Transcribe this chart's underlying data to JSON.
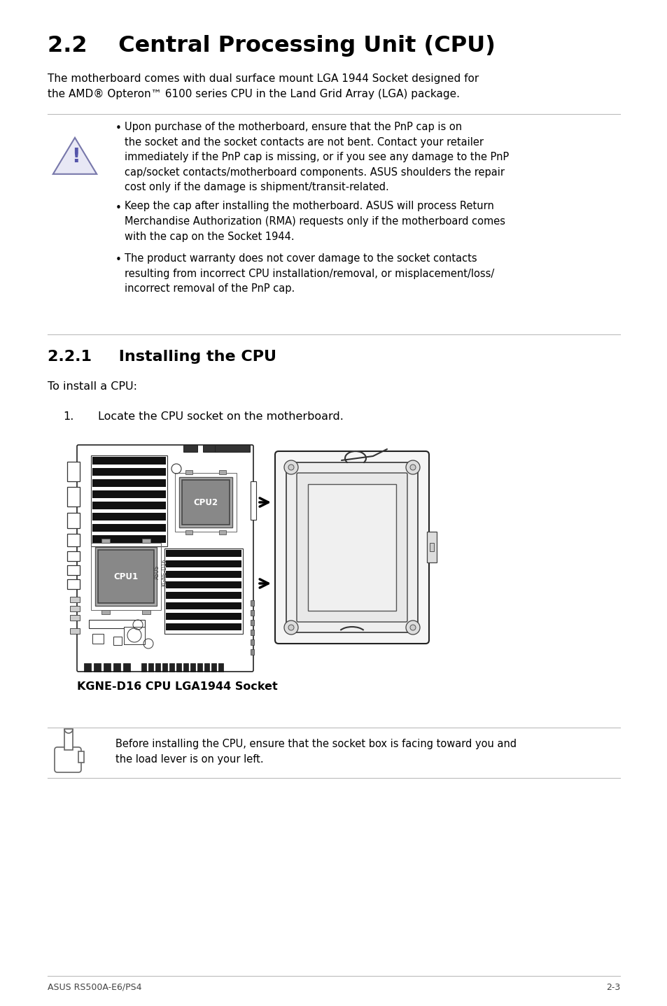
{
  "bg_color": "#ffffff",
  "title_22": "2.2    Central Processing Unit (CPU)",
  "intro_text": "The motherboard comes with dual surface mount LGA 1944 Socket designed for\nthe AMD® Opteron™ 6100 series CPU in the Land Grid Array (LGA) package.",
  "warning_bullets": [
    "Upon purchase of the motherboard, ensure that the PnP cap is on\nthe socket and the socket contacts are not bent. Contact your retailer\nimmediately if the PnP cap is missing, or if you see any damage to the PnP\ncap/socket contacts/motherboard components. ASUS shoulders the repair\ncost only if the damage is shipment/transit-related.",
    "Keep the cap after installing the motherboard. ASUS will process Return\nMerchandise Authorization (RMA) requests only if the motherboard comes\nwith the cap on the Socket 1944.",
    "The product warranty does not cover damage to the socket contacts\nresulting from incorrect CPU installation/removal, or misplacement/loss/\nincorrect removal of the PnP cap."
  ],
  "title_221": "2.2.1     Installing the CPU",
  "to_install": "To install a CPU:",
  "step1_num": "1.",
  "step1_text": "Locate the CPU socket on the motherboard.",
  "img_caption": "KGNE-D16 CPU LGA1944 Socket",
  "note_text": "Before installing the CPU, ensure that the socket box is facing toward you and\nthe load lever is on your left.",
  "footer_left": "ASUS RS500A-E6/PS4",
  "footer_right": "2-3",
  "line_color": "#bbbbbb",
  "text_color": "#000000",
  "warn_tri_fill": "#e8e8f5",
  "warn_tri_edge": "#7777aa",
  "warn_excl_color": "#5555aa"
}
